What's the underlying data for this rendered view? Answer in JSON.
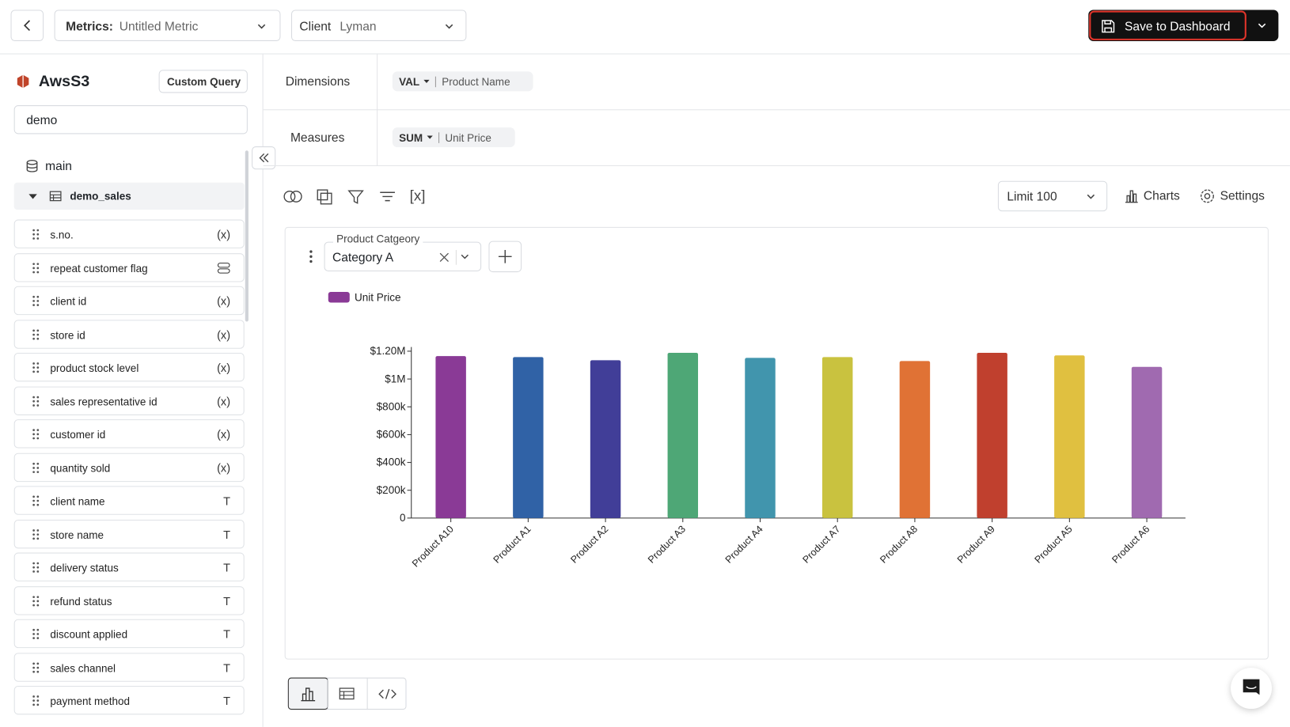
{
  "header": {
    "metrics_label": "Metrics:",
    "metrics_value": "Untitled Metric",
    "client_label": "Client",
    "client_value": "Lyman",
    "save_button": "Save to Dashboard"
  },
  "sidebar": {
    "source": "AwsS3",
    "custom_query": "Custom Query",
    "search": "demo",
    "schema": "main",
    "table": "demo_sales",
    "fields": [
      {
        "name": "s.no.",
        "icon": "(x)"
      },
      {
        "name": "repeat customer flag"
      },
      {
        "name": "client id",
        "icon": "(x)"
      },
      {
        "name": "store id",
        "icon": "(x)"
      },
      {
        "name": "product stock level",
        "icon": "(x)"
      },
      {
        "name": "sales representative id",
        "icon": "(x)"
      },
      {
        "name": "customer id",
        "icon": "(x)"
      },
      {
        "name": "quantity sold",
        "icon": "(x)"
      },
      {
        "name": "client name",
        "icon": "T"
      },
      {
        "name": "store name",
        "icon": "T"
      },
      {
        "name": "delivery status",
        "icon": "T"
      },
      {
        "name": "refund status",
        "icon": "T"
      },
      {
        "name": "discount applied",
        "icon": "T"
      },
      {
        "name": "sales channel",
        "icon": "T"
      },
      {
        "name": "payment method",
        "icon": "T"
      }
    ]
  },
  "query": {
    "dimensions_label": "Dimensions",
    "dimension": {
      "agg": "VAL",
      "field": "Product Name"
    },
    "measures_label": "Measures",
    "measure": {
      "agg": "SUM",
      "field": "Unit Price"
    }
  },
  "toolbar": {
    "variables": "[x]",
    "limit": "Limit 100",
    "charts": "Charts",
    "settings": "Settings"
  },
  "filter": {
    "label": "Product Catgeory",
    "value": "Category A"
  },
  "chart_data": {
    "type": "bar",
    "categories": [
      "Product A10",
      "Product A1",
      "Product A2",
      "Product A3",
      "Product A4",
      "Product A7",
      "Product A8",
      "Product A9",
      "Product A5",
      "Product A6"
    ],
    "series": [
      {
        "name": "Unit Price",
        "color": "#8a3a96",
        "colors": [
          "#8a3a96",
          "#3062a6",
          "#413e98",
          "#4ea776",
          "#4195ad",
          "#c9c23f",
          "#e07235",
          "#c0402e",
          "#e0c040",
          "#a06ab0"
        ],
        "values": [
          1165000,
          1158000,
          1135000,
          1188000,
          1152000,
          1158000,
          1129000,
          1188000,
          1170000,
          1087000
        ]
      }
    ],
    "ylim": [
      0,
      1230000
    ],
    "yticks": [
      0,
      {
        "value": 200000,
        "label": "$200k"
      },
      {
        "value": 400000,
        "label": "$400k"
      },
      {
        "value": 600000,
        "label": "$600k"
      },
      {
        "value": 800000,
        "label": "$800k"
      },
      {
        "value": 1000000,
        "label": "$1M"
      },
      {
        "value": 1200000,
        "label": "$1.20M"
      }
    ],
    "legend": "top-left"
  }
}
